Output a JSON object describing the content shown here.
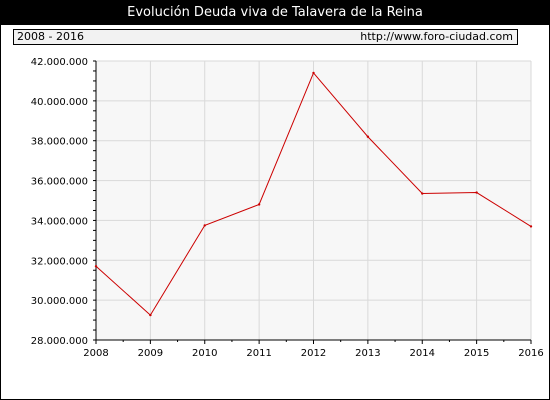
{
  "title": "Evolución Deuda viva de Talavera de la Reina",
  "period": "2008 - 2016",
  "source_url": "http://www.foro-ciudad.com",
  "colors": {
    "title_bg": "#000000",
    "line": "#cc0000",
    "plot_bg": "#f7f7f7",
    "grid": "#d9d9d9"
  },
  "chart_data": {
    "type": "line",
    "x": [
      "2008",
      "2009",
      "2010",
      "2011",
      "2012",
      "2013",
      "2014",
      "2015",
      "2016"
    ],
    "series": [
      {
        "values": [
          31700000,
          29250000,
          33750000,
          34800000,
          41400000,
          38200000,
          35350000,
          35400000,
          33700000
        ]
      }
    ],
    "ylim": [
      28000000,
      42000000
    ],
    "yticks": [
      "28.000.000",
      "30.000.000",
      "32.000.000",
      "34.000.000",
      "36.000.000",
      "38.000.000",
      "40.000.000",
      "42.000.000"
    ],
    "ytick_values": [
      28000000,
      30000000,
      32000000,
      34000000,
      36000000,
      38000000,
      40000000,
      42000000
    ],
    "grid": true
  }
}
